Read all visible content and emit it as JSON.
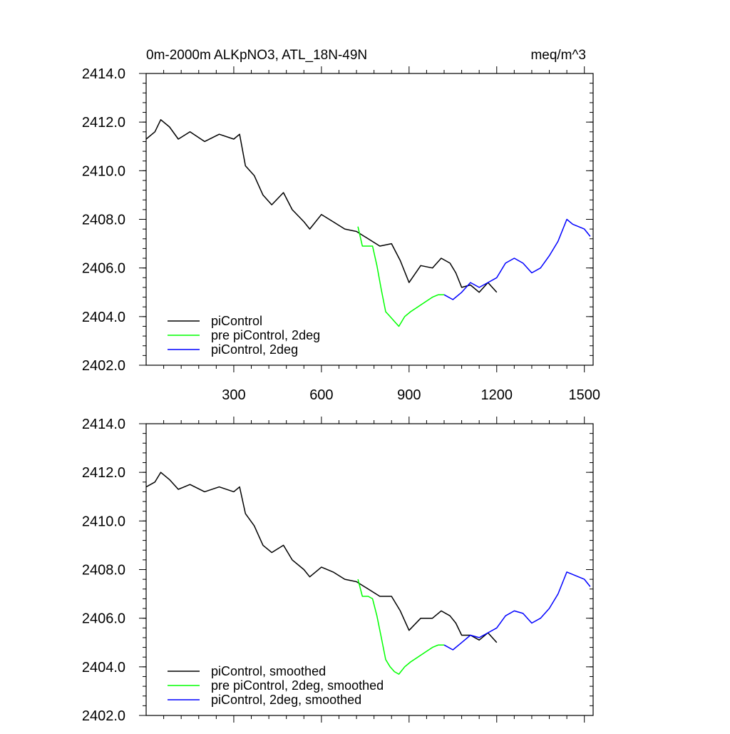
{
  "chart_data": [
    {
      "type": "line",
      "title": "0m-2000m ALKpNO3, ATL_18N-49N",
      "units": "meq/m^3",
      "xlabel": "",
      "ylabel": "",
      "xlim": [
        0,
        1530
      ],
      "ylim": [
        2402.0,
        2414.0
      ],
      "xticks": [
        300,
        600,
        900,
        1200,
        1500
      ],
      "xtick_labels": [
        "300",
        "600",
        "900",
        "1200",
        "1500"
      ],
      "yticks": [
        2402.0,
        2404.0,
        2406.0,
        2408.0,
        2410.0,
        2412.0,
        2414.0
      ],
      "ytick_labels": [
        "2402.0",
        "2404.0",
        "2406.0",
        "2408.0",
        "2410.0",
        "2412.0",
        "2414.0"
      ],
      "grid": false,
      "legend_position": "bottom-left",
      "series": [
        {
          "name": "piControl",
          "color": "#000000",
          "x": [
            0,
            30,
            50,
            80,
            110,
            150,
            200,
            250,
            300,
            320,
            340,
            370,
            400,
            430,
            470,
            500,
            540,
            560,
            600,
            640,
            680,
            720,
            760,
            800,
            840,
            870,
            900,
            940,
            980,
            1010,
            1040,
            1060,
            1080,
            1110,
            1140,
            1170,
            1200
          ],
          "y": [
            2411.3,
            2411.6,
            2412.1,
            2411.8,
            2411.3,
            2411.6,
            2411.2,
            2411.5,
            2411.3,
            2411.5,
            2410.2,
            2409.8,
            2409.0,
            2408.6,
            2409.1,
            2408.4,
            2407.9,
            2407.6,
            2408.2,
            2407.9,
            2407.6,
            2407.5,
            2407.2,
            2406.9,
            2407.0,
            2406.3,
            2405.4,
            2406.1,
            2406.0,
            2406.4,
            2406.2,
            2405.8,
            2405.2,
            2405.3,
            2405.0,
            2405.4,
            2405.0
          ]
        },
        {
          "name": "pre piControl, 2deg",
          "color": "#00ff00",
          "x": [
            725,
            740,
            760,
            775,
            790,
            805,
            820,
            835,
            850,
            865,
            885,
            905,
            930,
            955,
            980,
            1000,
            1020
          ],
          "y": [
            2407.7,
            2406.9,
            2406.9,
            2406.9,
            2406.1,
            2405.1,
            2404.2,
            2404.0,
            2403.8,
            2403.6,
            2404.0,
            2404.2,
            2404.4,
            2404.6,
            2404.8,
            2404.9,
            2404.9
          ]
        },
        {
          "name": "piControl, 2deg",
          "color": "#0000ff",
          "x": [
            1020,
            1050,
            1080,
            1110,
            1140,
            1170,
            1200,
            1230,
            1260,
            1290,
            1320,
            1350,
            1380,
            1410,
            1440,
            1460,
            1480,
            1500,
            1520
          ],
          "y": [
            2404.9,
            2404.7,
            2405.0,
            2405.4,
            2405.2,
            2405.4,
            2405.6,
            2406.2,
            2406.4,
            2406.2,
            2405.8,
            2406.0,
            2406.5,
            2407.1,
            2408.0,
            2407.8,
            2407.7,
            2407.6,
            2407.3
          ]
        }
      ]
    },
    {
      "type": "line",
      "title": "",
      "xlabel": "",
      "ylabel": "",
      "xlim": [
        0,
        1530
      ],
      "ylim": [
        2402.0,
        2414.0
      ],
      "xticks": [
        300,
        600,
        900,
        1200,
        1500
      ],
      "xtick_labels": [],
      "yticks": [
        2402.0,
        2404.0,
        2406.0,
        2408.0,
        2410.0,
        2412.0,
        2414.0
      ],
      "ytick_labels": [
        "2402.0",
        "2404.0",
        "2406.0",
        "2408.0",
        "2410.0",
        "2412.0",
        "2414.0"
      ],
      "grid": false,
      "legend_position": "bottom-left",
      "series": [
        {
          "name": "piControl, smoothed",
          "color": "#000000",
          "x": [
            0,
            30,
            50,
            80,
            110,
            150,
            200,
            250,
            300,
            320,
            340,
            370,
            400,
            430,
            470,
            500,
            540,
            560,
            600,
            640,
            680,
            720,
            760,
            800,
            840,
            870,
            900,
            940,
            980,
            1010,
            1040,
            1060,
            1080,
            1110,
            1140,
            1170,
            1200
          ],
          "y": [
            2411.4,
            2411.6,
            2412.0,
            2411.7,
            2411.3,
            2411.5,
            2411.2,
            2411.4,
            2411.2,
            2411.4,
            2410.3,
            2409.8,
            2409.0,
            2408.7,
            2409.0,
            2408.4,
            2408.0,
            2407.7,
            2408.1,
            2407.9,
            2407.6,
            2407.5,
            2407.2,
            2406.9,
            2406.9,
            2406.3,
            2405.5,
            2406.0,
            2406.0,
            2406.3,
            2406.1,
            2405.8,
            2405.3,
            2405.3,
            2405.1,
            2405.4,
            2405.0
          ]
        },
        {
          "name": "pre piControl, 2deg, smoothed",
          "color": "#00ff00",
          "x": [
            725,
            740,
            760,
            775,
            790,
            805,
            820,
            835,
            850,
            865,
            885,
            905,
            930,
            955,
            980,
            1000,
            1020
          ],
          "y": [
            2407.6,
            2406.9,
            2406.9,
            2406.8,
            2406.1,
            2405.2,
            2404.3,
            2404.0,
            2403.8,
            2403.7,
            2404.0,
            2404.2,
            2404.4,
            2404.6,
            2404.8,
            2404.9,
            2404.9
          ]
        },
        {
          "name": "piControl, 2deg, smoothed",
          "color": "#0000ff",
          "x": [
            1020,
            1050,
            1080,
            1110,
            1140,
            1170,
            1200,
            1230,
            1260,
            1290,
            1320,
            1350,
            1380,
            1410,
            1440,
            1460,
            1480,
            1500,
            1520
          ],
          "y": [
            2404.9,
            2404.7,
            2405.0,
            2405.3,
            2405.2,
            2405.4,
            2405.6,
            2406.1,
            2406.3,
            2406.2,
            2405.8,
            2406.0,
            2406.4,
            2407.0,
            2407.9,
            2407.8,
            2407.7,
            2407.6,
            2407.3
          ]
        }
      ]
    }
  ]
}
